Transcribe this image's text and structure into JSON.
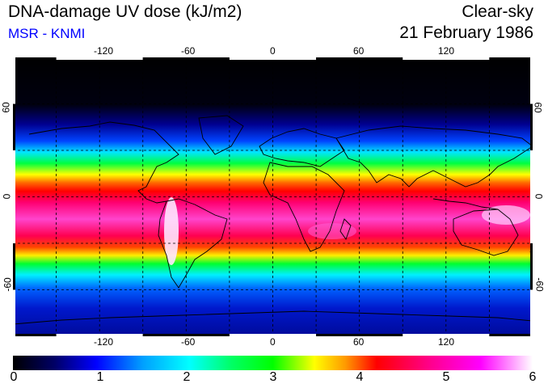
{
  "header": {
    "title": "DNA-damage UV dose (kJ/m2)",
    "subtitle": "MSR - KNMI",
    "condition": "Clear-sky",
    "date": "21 February 1986"
  },
  "map": {
    "projection": "equirectangular",
    "lon_range": [
      -180,
      180
    ],
    "lat_range": [
      -90,
      90
    ],
    "grid_style": "dashed",
    "lon_tick_labels": [
      "-120",
      "-60",
      "0",
      "60",
      "120"
    ],
    "lat_tick_labels": [
      "60",
      "0",
      "-60"
    ]
  },
  "colorbar": {
    "labels": [
      "0",
      "1",
      "2",
      "3",
      "4",
      "5",
      "6"
    ],
    "min": 0,
    "max": 6,
    "colors": [
      "#000000",
      "#000066",
      "#0000ff",
      "#00a0ff",
      "#00ffff",
      "#00ff66",
      "#00ff00",
      "#ffff00",
      "#ff9900",
      "#ff0000",
      "#ff0088",
      "#ff00ff",
      "#ffffff"
    ]
  }
}
